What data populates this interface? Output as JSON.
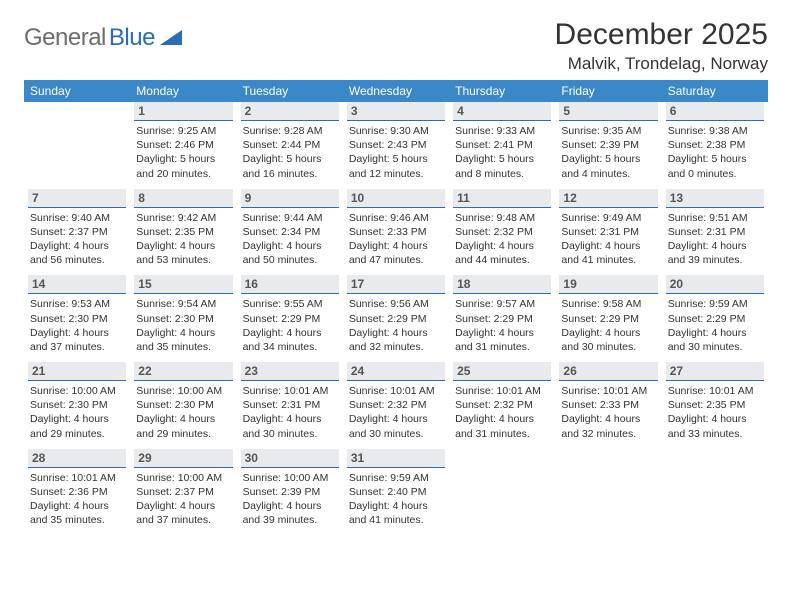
{
  "brand": {
    "part1": "General",
    "part2": "Blue"
  },
  "title": "December 2025",
  "location": "Malvik, Trondelag, Norway",
  "colors": {
    "header_bg": "#3b88c8",
    "brand_gray": "#6c6c6c",
    "brand_blue": "#2a6db6",
    "daynum_bg": "#e8eaed",
    "daynum_border": "#2a6db6"
  },
  "weekdays": [
    "Sunday",
    "Monday",
    "Tuesday",
    "Wednesday",
    "Thursday",
    "Friday",
    "Saturday"
  ],
  "weeks": [
    [
      {
        "n": "",
        "sr": "",
        "ss": "",
        "dl": ""
      },
      {
        "n": "1",
        "sr": "Sunrise: 9:25 AM",
        "ss": "Sunset: 2:46 PM",
        "dl": "Daylight: 5 hours and 20 minutes."
      },
      {
        "n": "2",
        "sr": "Sunrise: 9:28 AM",
        "ss": "Sunset: 2:44 PM",
        "dl": "Daylight: 5 hours and 16 minutes."
      },
      {
        "n": "3",
        "sr": "Sunrise: 9:30 AM",
        "ss": "Sunset: 2:43 PM",
        "dl": "Daylight: 5 hours and 12 minutes."
      },
      {
        "n": "4",
        "sr": "Sunrise: 9:33 AM",
        "ss": "Sunset: 2:41 PM",
        "dl": "Daylight: 5 hours and 8 minutes."
      },
      {
        "n": "5",
        "sr": "Sunrise: 9:35 AM",
        "ss": "Sunset: 2:39 PM",
        "dl": "Daylight: 5 hours and 4 minutes."
      },
      {
        "n": "6",
        "sr": "Sunrise: 9:38 AM",
        "ss": "Sunset: 2:38 PM",
        "dl": "Daylight: 5 hours and 0 minutes."
      }
    ],
    [
      {
        "n": "7",
        "sr": "Sunrise: 9:40 AM",
        "ss": "Sunset: 2:37 PM",
        "dl": "Daylight: 4 hours and 56 minutes."
      },
      {
        "n": "8",
        "sr": "Sunrise: 9:42 AM",
        "ss": "Sunset: 2:35 PM",
        "dl": "Daylight: 4 hours and 53 minutes."
      },
      {
        "n": "9",
        "sr": "Sunrise: 9:44 AM",
        "ss": "Sunset: 2:34 PM",
        "dl": "Daylight: 4 hours and 50 minutes."
      },
      {
        "n": "10",
        "sr": "Sunrise: 9:46 AM",
        "ss": "Sunset: 2:33 PM",
        "dl": "Daylight: 4 hours and 47 minutes."
      },
      {
        "n": "11",
        "sr": "Sunrise: 9:48 AM",
        "ss": "Sunset: 2:32 PM",
        "dl": "Daylight: 4 hours and 44 minutes."
      },
      {
        "n": "12",
        "sr": "Sunrise: 9:49 AM",
        "ss": "Sunset: 2:31 PM",
        "dl": "Daylight: 4 hours and 41 minutes."
      },
      {
        "n": "13",
        "sr": "Sunrise: 9:51 AM",
        "ss": "Sunset: 2:31 PM",
        "dl": "Daylight: 4 hours and 39 minutes."
      }
    ],
    [
      {
        "n": "14",
        "sr": "Sunrise: 9:53 AM",
        "ss": "Sunset: 2:30 PM",
        "dl": "Daylight: 4 hours and 37 minutes."
      },
      {
        "n": "15",
        "sr": "Sunrise: 9:54 AM",
        "ss": "Sunset: 2:30 PM",
        "dl": "Daylight: 4 hours and 35 minutes."
      },
      {
        "n": "16",
        "sr": "Sunrise: 9:55 AM",
        "ss": "Sunset: 2:29 PM",
        "dl": "Daylight: 4 hours and 34 minutes."
      },
      {
        "n": "17",
        "sr": "Sunrise: 9:56 AM",
        "ss": "Sunset: 2:29 PM",
        "dl": "Daylight: 4 hours and 32 minutes."
      },
      {
        "n": "18",
        "sr": "Sunrise: 9:57 AM",
        "ss": "Sunset: 2:29 PM",
        "dl": "Daylight: 4 hours and 31 minutes."
      },
      {
        "n": "19",
        "sr": "Sunrise: 9:58 AM",
        "ss": "Sunset: 2:29 PM",
        "dl": "Daylight: 4 hours and 30 minutes."
      },
      {
        "n": "20",
        "sr": "Sunrise: 9:59 AM",
        "ss": "Sunset: 2:29 PM",
        "dl": "Daylight: 4 hours and 30 minutes."
      }
    ],
    [
      {
        "n": "21",
        "sr": "Sunrise: 10:00 AM",
        "ss": "Sunset: 2:30 PM",
        "dl": "Daylight: 4 hours and 29 minutes."
      },
      {
        "n": "22",
        "sr": "Sunrise: 10:00 AM",
        "ss": "Sunset: 2:30 PM",
        "dl": "Daylight: 4 hours and 29 minutes."
      },
      {
        "n": "23",
        "sr": "Sunrise: 10:01 AM",
        "ss": "Sunset: 2:31 PM",
        "dl": "Daylight: 4 hours and 30 minutes."
      },
      {
        "n": "24",
        "sr": "Sunrise: 10:01 AM",
        "ss": "Sunset: 2:32 PM",
        "dl": "Daylight: 4 hours and 30 minutes."
      },
      {
        "n": "25",
        "sr": "Sunrise: 10:01 AM",
        "ss": "Sunset: 2:32 PM",
        "dl": "Daylight: 4 hours and 31 minutes."
      },
      {
        "n": "26",
        "sr": "Sunrise: 10:01 AM",
        "ss": "Sunset: 2:33 PM",
        "dl": "Daylight: 4 hours and 32 minutes."
      },
      {
        "n": "27",
        "sr": "Sunrise: 10:01 AM",
        "ss": "Sunset: 2:35 PM",
        "dl": "Daylight: 4 hours and 33 minutes."
      }
    ],
    [
      {
        "n": "28",
        "sr": "Sunrise: 10:01 AM",
        "ss": "Sunset: 2:36 PM",
        "dl": "Daylight: 4 hours and 35 minutes."
      },
      {
        "n": "29",
        "sr": "Sunrise: 10:00 AM",
        "ss": "Sunset: 2:37 PM",
        "dl": "Daylight: 4 hours and 37 minutes."
      },
      {
        "n": "30",
        "sr": "Sunrise: 10:00 AM",
        "ss": "Sunset: 2:39 PM",
        "dl": "Daylight: 4 hours and 39 minutes."
      },
      {
        "n": "31",
        "sr": "Sunrise: 9:59 AM",
        "ss": "Sunset: 2:40 PM",
        "dl": "Daylight: 4 hours and 41 minutes."
      },
      {
        "n": "",
        "sr": "",
        "ss": "",
        "dl": ""
      },
      {
        "n": "",
        "sr": "",
        "ss": "",
        "dl": ""
      },
      {
        "n": "",
        "sr": "",
        "ss": "",
        "dl": ""
      }
    ]
  ]
}
